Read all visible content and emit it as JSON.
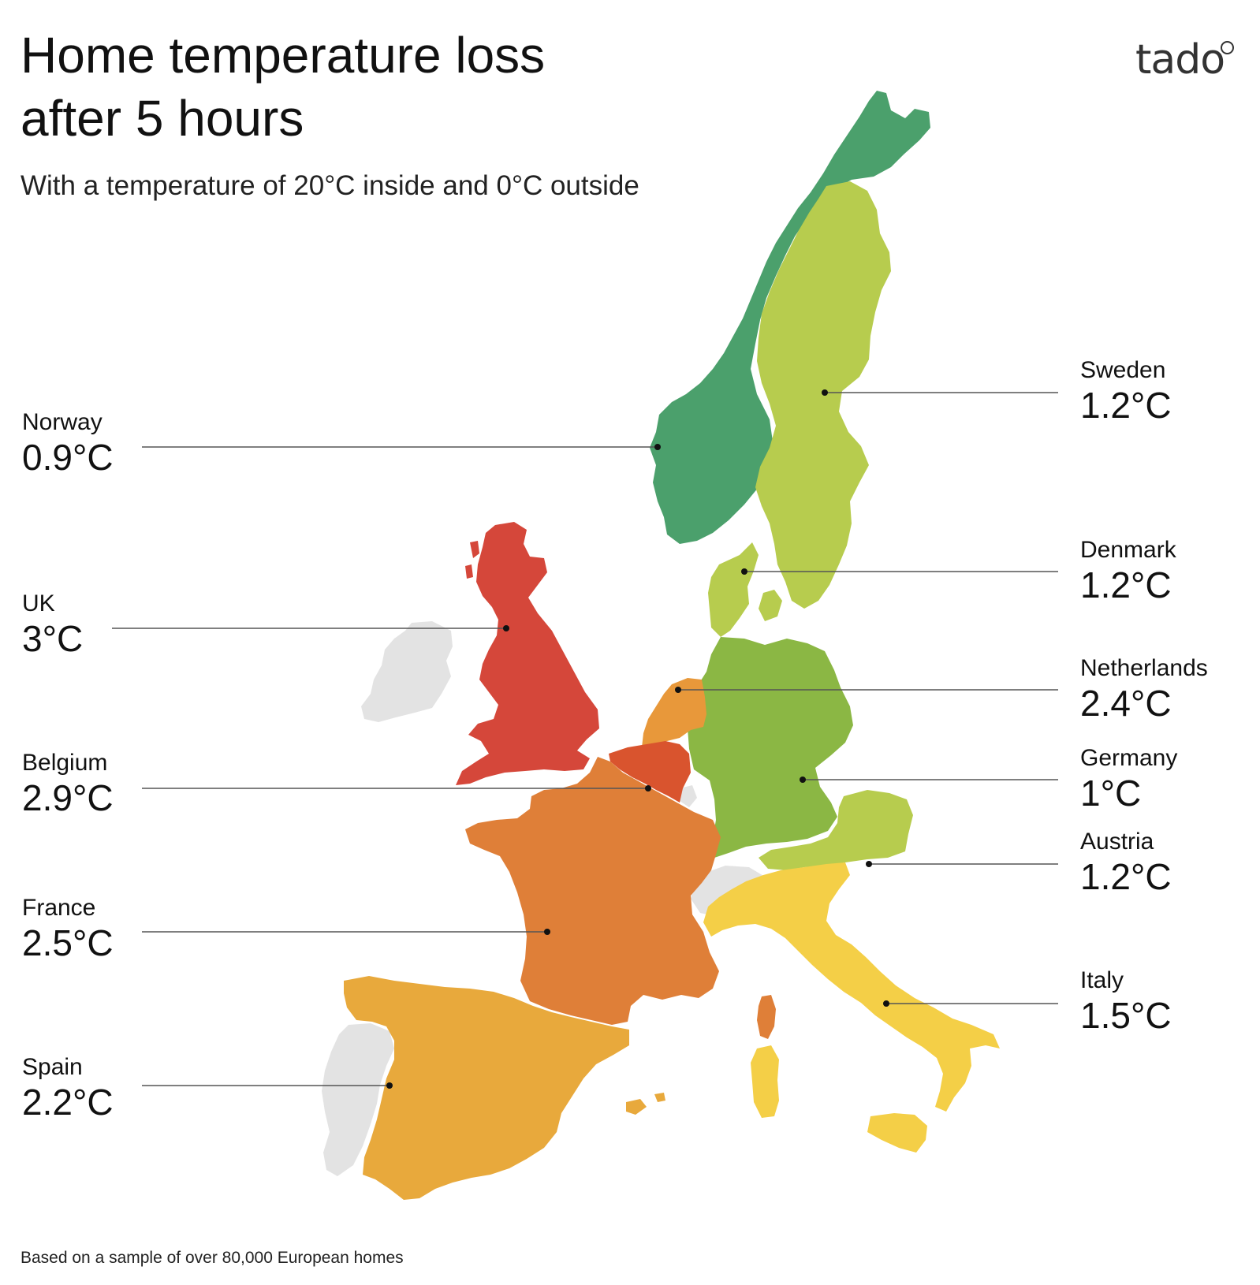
{
  "title": {
    "line1": "Home temperature loss",
    "line2": "after 5 hours"
  },
  "subtitle": "With a temperature of 20°C inside and 0°C outside",
  "logo": "tado",
  "footnote": "Based on a sample of over 80,000 European homes",
  "colors": {
    "norway": "#4ba06c",
    "sweden": "#b7cc4e",
    "denmark": "#b7cc4e",
    "germany": "#8bb744",
    "austria": "#b7cc4e",
    "italy": "#f4cf47",
    "netherlands": "#e8983a",
    "belgium": "#d9542e",
    "france": "#df7f38",
    "spain": "#e8a93c",
    "uk": "#d5473a",
    "nodata": "#e3e3e3"
  },
  "countries": {
    "norway": {
      "name": "Norway",
      "value": "0.9°C"
    },
    "uk": {
      "name": "UK",
      "value": "3°C"
    },
    "belgium": {
      "name": "Belgium",
      "value": "2.9°C"
    },
    "france": {
      "name": "France",
      "value": "2.5°C"
    },
    "spain": {
      "name": "Spain",
      "value": "2.2°C"
    },
    "sweden": {
      "name": "Sweden",
      "value": "1.2°C"
    },
    "denmark": {
      "name": "Denmark",
      "value": "1.2°C"
    },
    "netherlands": {
      "name": "Netherlands",
      "value": "2.4°C"
    },
    "germany": {
      "name": "Germany",
      "value": "1°C"
    },
    "austria": {
      "name": "Austria",
      "value": "1.2°C"
    },
    "italy": {
      "name": "Italy",
      "value": "1.5°C"
    }
  }
}
